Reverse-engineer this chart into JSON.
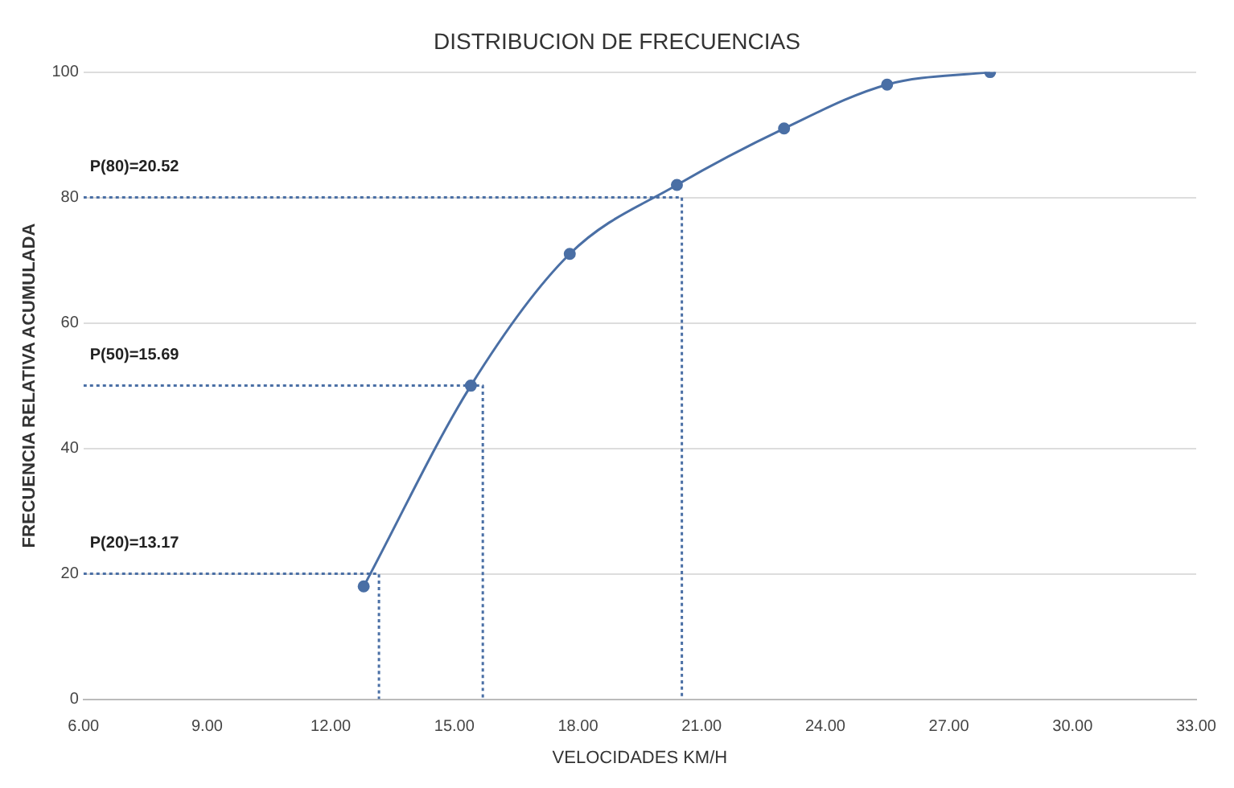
{
  "chart_data": {
    "type": "line",
    "title": "DISTRIBUCION DE FRECUENCIAS",
    "xlabel": "VELOCIDADES KM/H",
    "ylabel": "FRECUENCIA RELATIVA ACUMULADA",
    "xlim": [
      6,
      33
    ],
    "xticks": [
      {
        "value": 6,
        "label": "6.00"
      },
      {
        "value": 9,
        "label": "9.00"
      },
      {
        "value": 12,
        "label": "12.00"
      },
      {
        "value": 15,
        "label": "15.00"
      },
      {
        "value": 18,
        "label": "18.00"
      },
      {
        "value": 21,
        "label": "21.00"
      },
      {
        "value": 24,
        "label": "24.00"
      },
      {
        "value": 27,
        "label": "27.00"
      },
      {
        "value": 30,
        "label": "30.00"
      },
      {
        "value": 33,
        "label": "33.00"
      }
    ],
    "ylim": [
      0,
      100
    ],
    "yticks": [
      0,
      20,
      40,
      60,
      80,
      100
    ],
    "grid": "y",
    "legend": false,
    "series": [
      {
        "color": "#4a6fa5",
        "marker": "circle",
        "line_style": "solid",
        "x": [
          12.8,
          15.4,
          17.8,
          20.4,
          23,
          25.5,
          28
        ],
        "values": [
          18,
          50,
          71,
          82,
          91,
          98,
          100
        ]
      },
      {
        "color": "#4a6fa5",
        "marker": "none",
        "line_style": "dotted",
        "x": [
          6,
          13.17,
          13.17
        ],
        "values": [
          20,
          20,
          0
        ]
      },
      {
        "color": "#4a6fa5",
        "marker": "none",
        "line_style": "dotted",
        "x": [
          6,
          15.69,
          15.69
        ],
        "values": [
          50,
          50,
          0
        ]
      },
      {
        "color": "#4a6fa5",
        "marker": "none",
        "line_style": "dotted",
        "x": [
          6,
          20.52,
          20.52
        ],
        "values": [
          80,
          80,
          0
        ]
      }
    ],
    "annotations": [
      "P(20)=13.17",
      "P(50)=15.69",
      "P(80)=20.52"
    ]
  }
}
